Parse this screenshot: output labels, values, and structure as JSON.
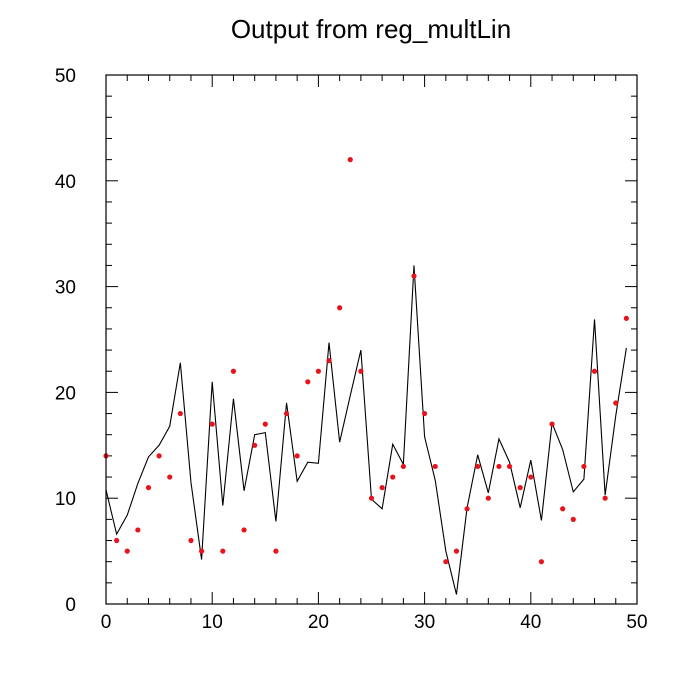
{
  "chart_data": {
    "type": "scatter",
    "title": "Output from reg_multLin",
    "xlabel": "",
    "ylabel": "",
    "xlim": [
      0,
      50
    ],
    "ylim": [
      0,
      50
    ],
    "x_ticks": [
      "0",
      "10",
      "20",
      "30",
      "40",
      "50"
    ],
    "y_ticks": [
      "0",
      "10",
      "20",
      "30",
      "40",
      "50"
    ],
    "grid": false,
    "series": [
      {
        "kind": "scatter",
        "color": "#e8141c",
        "x": [
          0,
          1,
          2,
          3,
          4,
          5,
          6,
          7,
          8,
          9,
          10,
          11,
          12,
          13,
          14,
          15,
          16,
          17,
          18,
          19,
          20,
          21,
          22,
          23,
          24,
          25,
          26,
          27,
          28,
          29,
          30,
          31,
          32,
          33,
          34,
          35,
          36,
          37,
          38,
          39,
          40,
          41,
          42,
          43,
          44,
          45,
          46,
          47,
          48,
          49
        ],
        "y": [
          14,
          6,
          5,
          7,
          11,
          14,
          12,
          18,
          6,
          5,
          17,
          5,
          22,
          7,
          15,
          17,
          5,
          18,
          14,
          21,
          22,
          23,
          28,
          42,
          22,
          10,
          11,
          12,
          13,
          31,
          18,
          13,
          4,
          5,
          9,
          13,
          10,
          13,
          13,
          11,
          12,
          4,
          17,
          9,
          8,
          13,
          22,
          10,
          19,
          27
        ]
      },
      {
        "kind": "line",
        "color": "#000000",
        "x": [
          0,
          1,
          2,
          3,
          4,
          5,
          6,
          7,
          8,
          9,
          10,
          11,
          12,
          13,
          14,
          15,
          16,
          17,
          18,
          19,
          20,
          21,
          22,
          23,
          24,
          25,
          26,
          27,
          28,
          29,
          30,
          31,
          32,
          33,
          34,
          35,
          36,
          37,
          38,
          39,
          40,
          41,
          42,
          43,
          44,
          45,
          46,
          47,
          48,
          49
        ],
        "y": [
          10.8,
          6.6,
          8.4,
          11.4,
          13.9,
          15.0,
          16.8,
          22.8,
          11.5,
          4.2,
          21.0,
          9.3,
          19.4,
          10.7,
          16.0,
          16.2,
          7.8,
          19.0,
          11.6,
          13.4,
          13.3,
          24.7,
          15.3,
          19.7,
          24.0,
          9.9,
          9.0,
          15.1,
          13.2,
          32.0,
          15.8,
          11.7,
          5.0,
          0.9,
          9.1,
          14.1,
          10.5,
          15.6,
          13.4,
          9.1,
          13.6,
          7.9,
          17.1,
          14.6,
          10.6,
          11.8,
          26.9,
          10.3,
          17.8,
          24.2
        ]
      }
    ]
  }
}
